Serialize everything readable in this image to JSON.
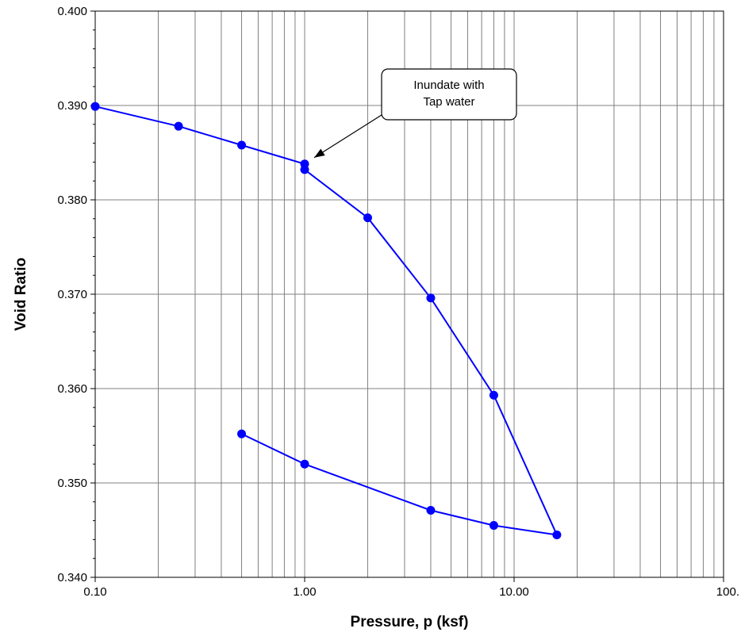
{
  "chart_data": {
    "type": "line",
    "title": "",
    "xlabel": "Pressure, p (ksf)",
    "ylabel": "Void Ratio",
    "xscale": "log",
    "xlim": [
      0.1,
      100
    ],
    "ylim": [
      0.34,
      0.4
    ],
    "grid": true,
    "x_tick_labels": [
      "0.10",
      "1.00",
      "10.00",
      "100."
    ],
    "y_tick_labels": [
      "0.340",
      "0.350",
      "0.360",
      "0.370",
      "0.380",
      "0.390",
      "0.400"
    ],
    "series": [
      {
        "color": "#0000ff",
        "marker": "circle",
        "points": [
          {
            "x": 0.1,
            "y": 0.3899
          },
          {
            "x": 0.25,
            "y": 0.3878
          },
          {
            "x": 0.5,
            "y": 0.3858
          },
          {
            "x": 1.0,
            "y": 0.3838
          },
          {
            "x": 1.0,
            "y": 0.3832
          },
          {
            "x": 2.0,
            "y": 0.3781
          },
          {
            "x": 4.0,
            "y": 0.3696
          },
          {
            "x": 8.0,
            "y": 0.3593
          },
          {
            "x": 16.0,
            "y": 0.3445
          },
          {
            "x": 8.0,
            "y": 0.3455
          },
          {
            "x": 4.0,
            "y": 0.3471
          },
          {
            "x": 1.0,
            "y": 0.352
          },
          {
            "x": 0.5,
            "y": 0.3552
          }
        ]
      }
    ],
    "annotations": [
      {
        "lines": [
          "Inundate with",
          "Tap water"
        ],
        "points_to": {
          "x": 1.0,
          "y": 0.3838
        }
      }
    ]
  }
}
